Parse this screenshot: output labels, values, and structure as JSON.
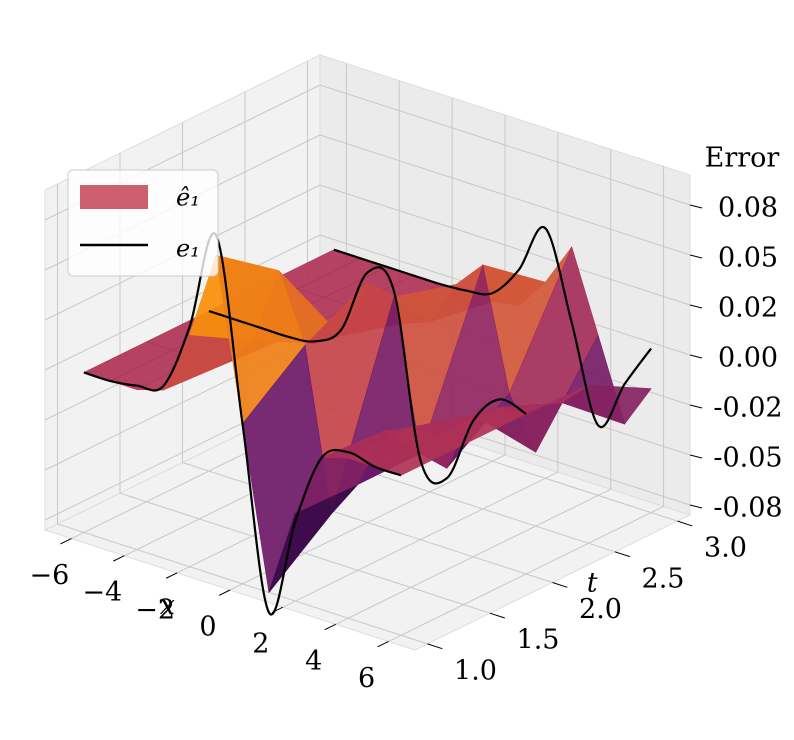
{
  "chart_data": {
    "type": "surface3d",
    "xlabel": "x",
    "ylabel": "t",
    "zlabel": "Error",
    "x": [
      -6,
      -5,
      -4,
      -3,
      -2,
      -1,
      0,
      1,
      2,
      3,
      4,
      5,
      6
    ],
    "t": [
      1.0,
      1.5,
      2.0,
      2.5,
      3.0
    ],
    "surface": {
      "name": "ê₁",
      "colormap": "inferno",
      "legend_color": "#cd5f6e",
      "z": [
        [
          0,
          0,
          0,
          0.004,
          0.036,
          0.08,
          0,
          -0.08,
          -0.036,
          -0.004,
          0,
          0,
          0
        ],
        [
          0,
          0,
          0,
          0.002,
          0.018,
          0.057,
          0.024,
          -0.056,
          -0.037,
          -0.006,
          0,
          0,
          0
        ],
        [
          0,
          0,
          0,
          0,
          0.001,
          0.009,
          0.04,
          0.037,
          -0.037,
          -0.04,
          -0.009,
          -0.001,
          0
        ],
        [
          0,
          0,
          0,
          0,
          0,
          0,
          0.005,
          0.028,
          0.042,
          -0.018,
          -0.043,
          -0.014,
          -0.001
        ],
        [
          0,
          0,
          0,
          0,
          0,
          0,
          0,
          0.002,
          0.018,
          0.04,
          0,
          -0.04,
          -0.018
        ]
      ]
    },
    "lines": {
      "name": "e₁",
      "color": "#000000",
      "slices": [
        {
          "t": 1.0,
          "values": [
            0,
            0,
            0.002,
            0.006,
            0.04,
            0.09,
            0,
            -0.09,
            -0.04,
            -0.004,
            0.003,
            0,
            0
          ]
        },
        {
          "t": 2.0,
          "values": [
            0,
            0,
            0,
            0,
            0.002,
            0.012,
            0.045,
            0.04,
            -0.04,
            -0.045,
            -0.012,
            0.003,
            0
          ]
        },
        {
          "t": 3.0,
          "values": [
            0,
            0,
            0,
            0,
            0,
            0.001,
            0.004,
            0.02,
            0.045,
            0.002,
            -0.045,
            -0.02,
            0.002
          ]
        }
      ]
    },
    "xlim": [
      -7,
      7
    ],
    "tlim": [
      0.9,
      3.1
    ],
    "zlim": [
      -0.08,
      0.09
    ],
    "xticks": [
      {
        "value": -6,
        "label": "−6"
      },
      {
        "value": -4,
        "label": "−4"
      },
      {
        "value": -2,
        "label": "−2"
      },
      0,
      2,
      4,
      6
    ],
    "tticks": [
      {
        "value": 1.0,
        "label": "1.0"
      },
      1.5,
      {
        "value": 2.0,
        "label": "2.0"
      },
      2.5,
      {
        "value": 3.0,
        "label": "3.0"
      }
    ],
    "zticks": [
      {
        "value": -0.075,
        "label": "-0.08"
      },
      {
        "value": -0.05,
        "label": "-0.05"
      },
      {
        "value": -0.025,
        "label": "-0.02"
      },
      {
        "value": 0,
        "label": "0.00"
      },
      {
        "value": 0.025,
        "label": "0.02"
      },
      {
        "value": 0.05,
        "label": "0.05"
      },
      {
        "value": 0.075,
        "label": "0.08"
      }
    ],
    "grid": true,
    "legend": "upper left"
  }
}
